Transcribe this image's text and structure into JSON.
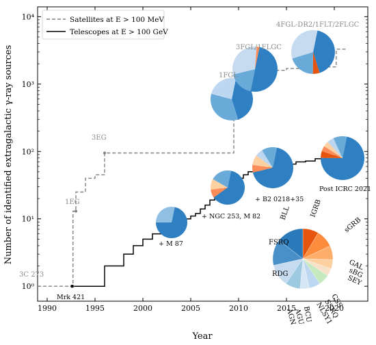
{
  "chart_data": {
    "type": "line",
    "xlabel": "Year",
    "ylabel": "Number of identified extragalactic γ-ray sources",
    "xlim": [
      1989,
      2023.5
    ],
    "ylim": [
      0.6,
      14000
    ],
    "y_scale": "log",
    "x_ticks": [
      1990,
      1995,
      2000,
      2005,
      2010,
      2015,
      2020
    ],
    "y_ticks": [
      {
        "value": 1,
        "label": "10⁰"
      },
      {
        "value": 10,
        "label": "10¹"
      },
      {
        "value": 100,
        "label": "10²"
      },
      {
        "value": 1000,
        "label": "10³"
      },
      {
        "value": 10000,
        "label": "10⁴"
      }
    ],
    "legend": {
      "position": "top-left",
      "entries": [
        {
          "label": "Satellites at E > 100 MeV",
          "style": "dashed",
          "color": "#808080"
        },
        {
          "label": "Telescopes at E > 100 GeV",
          "style": "solid",
          "color": "#000000"
        }
      ]
    },
    "series": [
      {
        "name": "Satellites at E > 100 MeV",
        "step": true,
        "x": [
          1989,
          1992.7,
          1992.7,
          1993.0,
          1993.0,
          1994.0,
          1994.0,
          1995.0,
          1995.0,
          1996.0,
          1996.0,
          2009.5,
          2009.5,
          2010.0,
          2010.0,
          2011.0,
          2011.0,
          2012.0,
          2012.0,
          2015.0,
          2015.0,
          2017.5,
          2017.5,
          2019.0,
          2019.0,
          2020.2,
          2020.2,
          2021.2
        ],
        "y": [
          1,
          1,
          13,
          13,
          25,
          25,
          40,
          40,
          45,
          45,
          95,
          95,
          300,
          300,
          700,
          700,
          1100,
          1100,
          1600,
          1600,
          1700,
          1700,
          1750,
          1750,
          1800,
          1800,
          3300,
          3300
        ]
      },
      {
        "name": "Telescopes at E > 100 GeV",
        "step": true,
        "x": [
          1992.6,
          1996,
          1996,
          1998,
          1998,
          1999,
          1999,
          2000,
          2000,
          2001,
          2001,
          2002,
          2002,
          2003,
          2003,
          2004,
          2004,
          2005,
          2005,
          2005.5,
          2005.5,
          2006,
          2006,
          2006.5,
          2006.5,
          2007,
          2007,
          2007.5,
          2007.5,
          2008,
          2008,
          2008.5,
          2008.5,
          2009,
          2009,
          2009.5,
          2009.5,
          2010,
          2010,
          2010.5,
          2010.5,
          2011,
          2011,
          2012,
          2012,
          2013,
          2013,
          2014,
          2014,
          2015,
          2015,
          2016,
          2016,
          2017,
          2017,
          2018,
          2018,
          2019,
          2019,
          2020,
          2020,
          2021.5
        ],
        "y": [
          1,
          1,
          2,
          2,
          3,
          3,
          4,
          4,
          5,
          5,
          6,
          6,
          7,
          7,
          9,
          9,
          10,
          10,
          11,
          11,
          12,
          12,
          14,
          14,
          16,
          16,
          19,
          19,
          22,
          22,
          25,
          25,
          28,
          28,
          32,
          32,
          36,
          36,
          40,
          40,
          45,
          45,
          50,
          50,
          55,
          55,
          58,
          58,
          60,
          60,
          65,
          65,
          70,
          70,
          72,
          72,
          78,
          78,
          82,
          82,
          86,
          90
        ]
      }
    ],
    "satellite_catalogs": [
      {
        "label": "3C 273",
        "year": 1992.7,
        "value": 1
      },
      {
        "label": "1EG",
        "year": 1993.0,
        "value": 13
      },
      {
        "label": "3EG",
        "year": 1996.0,
        "value": 95
      },
      {
        "label": "1FGL",
        "year": 2010.0,
        "value": 700
      },
      {
        "label": "3FGL/1FLGC",
        "year": 2012.8,
        "value": 1700
      },
      {
        "label": "4FGL-DR2/1FLT/2FLGC",
        "year": 2019.5,
        "value": 3300
      }
    ],
    "telescope_milestones": [
      {
        "label": "Mrk 421",
        "year": 1992.6,
        "value": 1
      },
      {
        "label": "+ M 87",
        "year": 2003.3,
        "value": 9
      },
      {
        "label": "+ NGC 253, M 82",
        "year": 2009.4,
        "value": 28
      },
      {
        "label": "+ B2 0218+35",
        "year": 2014.6,
        "value": 60
      },
      {
        "label": "Post ICRC 2021",
        "year": 2021.5,
        "value": 90
      }
    ],
    "class_legend": {
      "labels": [
        "BLL",
        "IGRB",
        "sGRB",
        "GAL",
        "sBG",
        "SEY",
        "CSS",
        "SSRQ",
        "NLSY1",
        "BCU",
        "AGU",
        "AGN",
        "RDG",
        "FSRQ"
      ],
      "colors": [
        "#2b7bbb",
        "#e6550d",
        "#fd8d3c",
        "#fdae6b",
        "#fdd0a2",
        "#f7e2c8",
        "#c7e9c0",
        "#a1d99b",
        "#c6dbef",
        "#deebf7",
        "#b5cfe6",
        "#9ecae1",
        "#c6dbef",
        "#4a90c8"
      ]
    }
  }
}
